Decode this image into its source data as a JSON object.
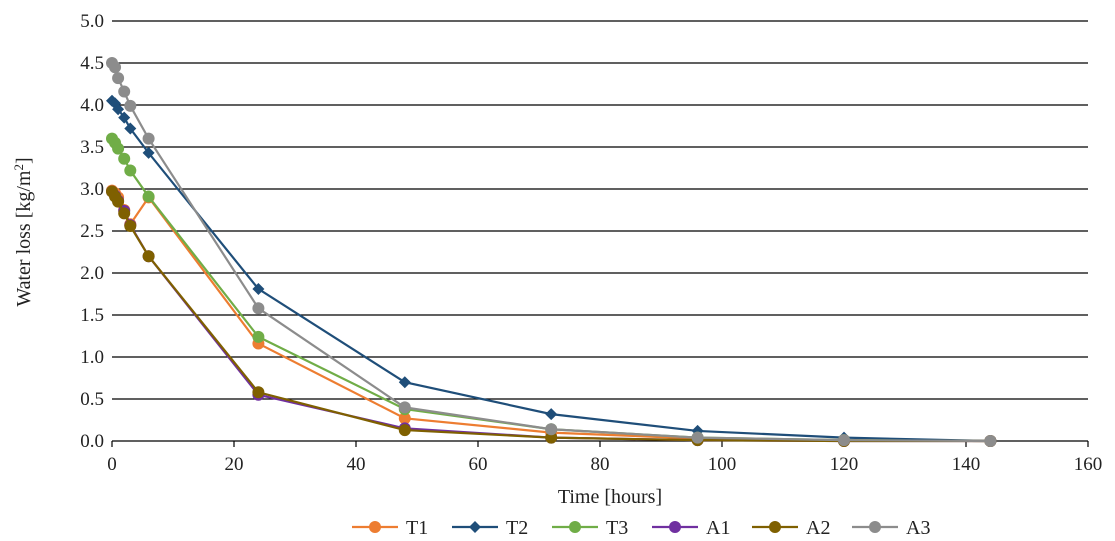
{
  "chart_data": {
    "type": "line",
    "title": "",
    "xlabel": "Time [hours]",
    "ylabel": "Water loss [kg/m",
    "ylabel_sup": "2",
    "ylabel_end": "]",
    "xlim": [
      0,
      160
    ],
    "ylim": [
      0,
      5.0
    ],
    "x_ticks": [
      "0",
      "20",
      "40",
      "60",
      "80",
      "100",
      "120",
      "140",
      "160"
    ],
    "y_ticks": [
      "0.0",
      "0.5",
      "1.0",
      "1.5",
      "2.0",
      "2.5",
      "3.0",
      "3.5",
      "4.0",
      "4.5",
      "5.0"
    ],
    "grid": "horizontal",
    "legend_position": "bottom",
    "series": [
      {
        "name": "T1",
        "color": "#ED7D31",
        "marker": "circle",
        "x": [
          0,
          0.5,
          1,
          2,
          3,
          6,
          24,
          48,
          72,
          96,
          120,
          144
        ],
        "y": [
          2.98,
          2.95,
          2.9,
          2.75,
          2.58,
          2.9,
          1.16,
          0.27,
          0.1,
          0.03,
          0.01,
          0.0
        ]
      },
      {
        "name": "T2",
        "color": "#1F4E79",
        "marker": "diamond",
        "x": [
          0,
          0.5,
          1,
          2,
          3,
          6,
          24,
          48,
          72,
          96,
          120,
          144
        ],
        "y": [
          4.05,
          4.02,
          3.95,
          3.85,
          3.72,
          3.43,
          1.81,
          0.7,
          0.32,
          0.12,
          0.04,
          0.0
        ]
      },
      {
        "name": "T3",
        "color": "#70AD47",
        "marker": "circle",
        "x": [
          0,
          0.5,
          1,
          2,
          3,
          6,
          24,
          48,
          72,
          96,
          120,
          144
        ],
        "y": [
          3.6,
          3.55,
          3.48,
          3.36,
          3.22,
          2.91,
          1.24,
          0.38,
          0.14,
          0.04,
          0.01,
          0.0
        ]
      },
      {
        "name": "A1",
        "color": "#7030A0",
        "marker": "circle",
        "x": [
          0,
          0.5,
          1,
          2,
          3,
          6,
          24,
          48,
          72,
          96,
          120,
          144
        ],
        "y": [
          2.97,
          2.92,
          2.86,
          2.74,
          2.57,
          2.2,
          0.55,
          0.15,
          0.04,
          0.01,
          0.0,
          0.0
        ]
      },
      {
        "name": "A2",
        "color": "#7F6000",
        "marker": "circle",
        "x": [
          0,
          0.5,
          1,
          2,
          3,
          6,
          24,
          48,
          72,
          96,
          120,
          144
        ],
        "y": [
          2.97,
          2.91,
          2.85,
          2.71,
          2.56,
          2.2,
          0.58,
          0.13,
          0.04,
          0.01,
          0.0,
          0.0
        ]
      },
      {
        "name": "A3",
        "color": "#8C8C8C",
        "marker": "circle",
        "x": [
          0,
          0.5,
          1,
          2,
          3,
          6,
          24,
          48,
          72,
          96,
          120,
          144
        ],
        "y": [
          4.5,
          4.45,
          4.32,
          4.16,
          3.99,
          3.6,
          1.58,
          0.4,
          0.14,
          0.04,
          0.01,
          0.0
        ]
      }
    ]
  }
}
